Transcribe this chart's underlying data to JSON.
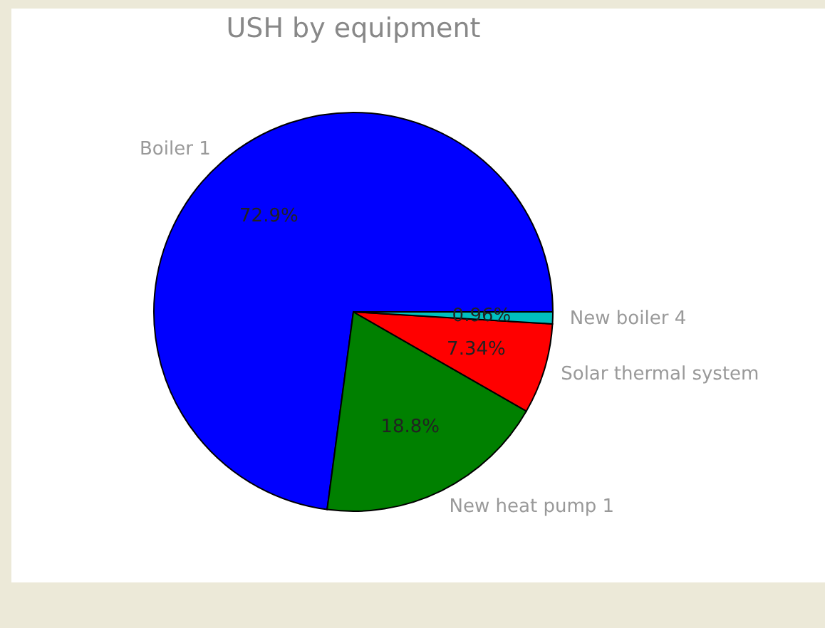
{
  "chart_data": {
    "type": "pie",
    "title": "USH by equipment",
    "categories": [
      "Boiler 1",
      "New heat pump 1",
      "Solar thermal system",
      "New boiler 4"
    ],
    "values": [
      72.9,
      18.8,
      7.34,
      0.96
    ],
    "value_labels": [
      "72.9%",
      "18.8%",
      "7.34%",
      "0.96%"
    ],
    "colors": [
      "#0000ff",
      "#008000",
      "#ff0000",
      "#00bfbf"
    ],
    "legend": false
  }
}
